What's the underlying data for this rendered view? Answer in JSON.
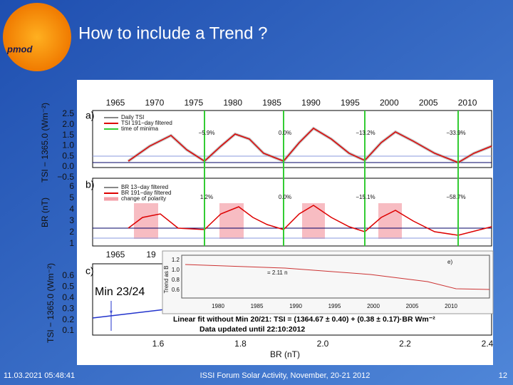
{
  "header": {
    "title": "How to include a Trend ?"
  },
  "footer": {
    "date": "11.03.2021 05:48:41",
    "event": "ISSI Forum Solar Activity, November, 20-21 2012",
    "page": "12"
  },
  "figure": {
    "top_years": [
      "1965",
      "1970",
      "1975",
      "1980",
      "1985",
      "1990",
      "1995",
      "2000",
      "2005",
      "2010"
    ],
    "panel_a": {
      "label": "a)",
      "y_label": "TSI − 1365.0 (Wm⁻²)",
      "y_ticks": [
        "2.5",
        "2.0",
        "1.5",
        "1.0",
        "0.5",
        "0.0",
        "−0.5"
      ],
      "legend": [
        "Daily TSI",
        "TSI 191−day filtered",
        "time of minima"
      ],
      "annotations": [
        "−5.9%",
        "0.0%",
        "−13.2%",
        "−33.9%"
      ]
    },
    "panel_b": {
      "label": "b)",
      "y_label": "BR (nT)",
      "y_ticks": [
        "6",
        "5",
        "4",
        "3",
        "2",
        "1"
      ],
      "legend": [
        "BR 13−day filtered",
        "BR 191−day filtered",
        "change of polarity"
      ],
      "annotations": [
        "1.2%",
        "0.0%",
        "−15.1%",
        "−58.7%"
      ],
      "bottom_years": [
        "1965",
        "19"
      ]
    },
    "panel_c": {
      "label": "c)",
      "y_label": "TSI − 1365.0 (Wm⁻²)",
      "y_ticks": [
        "0.6",
        "0.5",
        "0.4",
        "0.3",
        "0.2",
        "0.1"
      ],
      "x_ticks": [
        "1.6",
        "1.8",
        "2.0",
        "2.2",
        "2.4"
      ],
      "x_label": "BR (nT)",
      "point_label": "Min 23/24",
      "fit": "Linear fit without Min 20/21: TSI = (1364.67 ± 0.40) + (0.38 ± 0.17)·BR Wm⁻²",
      "updated": "Data updated until 22:10:2012"
    },
    "inset": {
      "y_label": "Trend as B",
      "y_ticks": [
        "1.2",
        "1.0",
        "0.8",
        "0.6"
      ],
      "x_ticks": [
        "1980",
        "1985",
        "1990",
        "1995",
        "2000",
        "2005",
        "2010"
      ],
      "label": "e)",
      "note": "= 2.11 n"
    }
  }
}
